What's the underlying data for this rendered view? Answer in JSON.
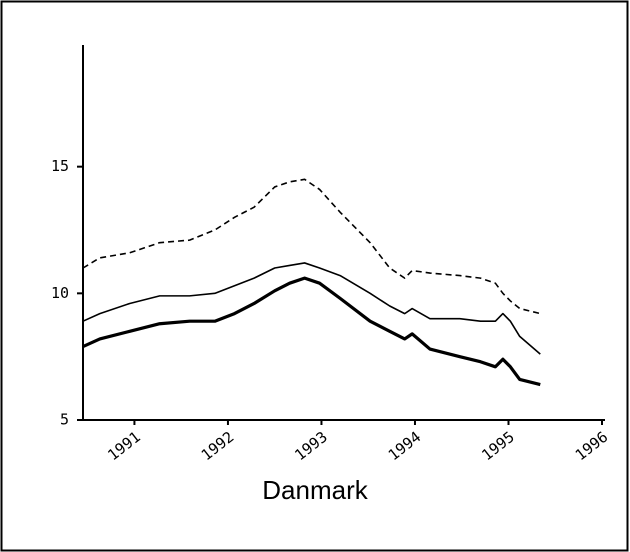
{
  "chart_data": {
    "type": "line",
    "title": "Danmark",
    "x": [
      1990.45,
      1990.63,
      1990.95,
      1991.27,
      1991.59,
      1991.86,
      1992.07,
      1992.28,
      1992.5,
      1992.66,
      1992.82,
      1992.98,
      1993.2,
      1993.52,
      1993.73,
      1993.89,
      1993.97,
      1994.16,
      1994.48,
      1994.7,
      1994.86,
      1994.94,
      1995.02,
      1995.12,
      1995.34
    ],
    "series": [
      {
        "color": "#000000",
        "dash": true,
        "width": 1.6,
        "values": [
          11.0,
          11.4,
          11.6,
          12.0,
          12.1,
          12.5,
          13.0,
          13.4,
          14.2,
          14.4,
          14.5,
          14.1,
          13.2,
          12.0,
          11.0,
          10.6,
          10.9,
          10.8,
          10.7,
          10.6,
          10.4,
          10.0,
          9.7,
          9.4,
          9.2
        ]
      },
      {
        "color": "#000000",
        "dash": false,
        "width": 1.6,
        "values": [
          8.9,
          9.2,
          9.6,
          9.9,
          9.9,
          10.0,
          10.3,
          10.6,
          11.0,
          11.1,
          11.2,
          11.0,
          10.7,
          10.0,
          9.5,
          9.2,
          9.4,
          9.0,
          9.0,
          8.9,
          8.9,
          9.2,
          8.9,
          8.3,
          7.6
        ]
      },
      {
        "color": "#000000",
        "dash": false,
        "width": 3.2,
        "values": [
          7.9,
          8.2,
          8.5,
          8.8,
          8.9,
          8.9,
          9.2,
          9.6,
          10.1,
          10.4,
          10.6,
          10.4,
          9.8,
          8.9,
          8.5,
          8.2,
          8.4,
          7.8,
          7.5,
          7.3,
          7.1,
          7.4,
          7.1,
          6.6,
          6.4
        ]
      }
    ],
    "xlim": [
      1990.45,
      1996
    ],
    "xticks": [
      1991,
      1992,
      1993,
      1994,
      1995,
      1996
    ],
    "ylim": [
      5,
      20
    ],
    "yticks": [
      5,
      10,
      15
    ],
    "grid": false
  }
}
